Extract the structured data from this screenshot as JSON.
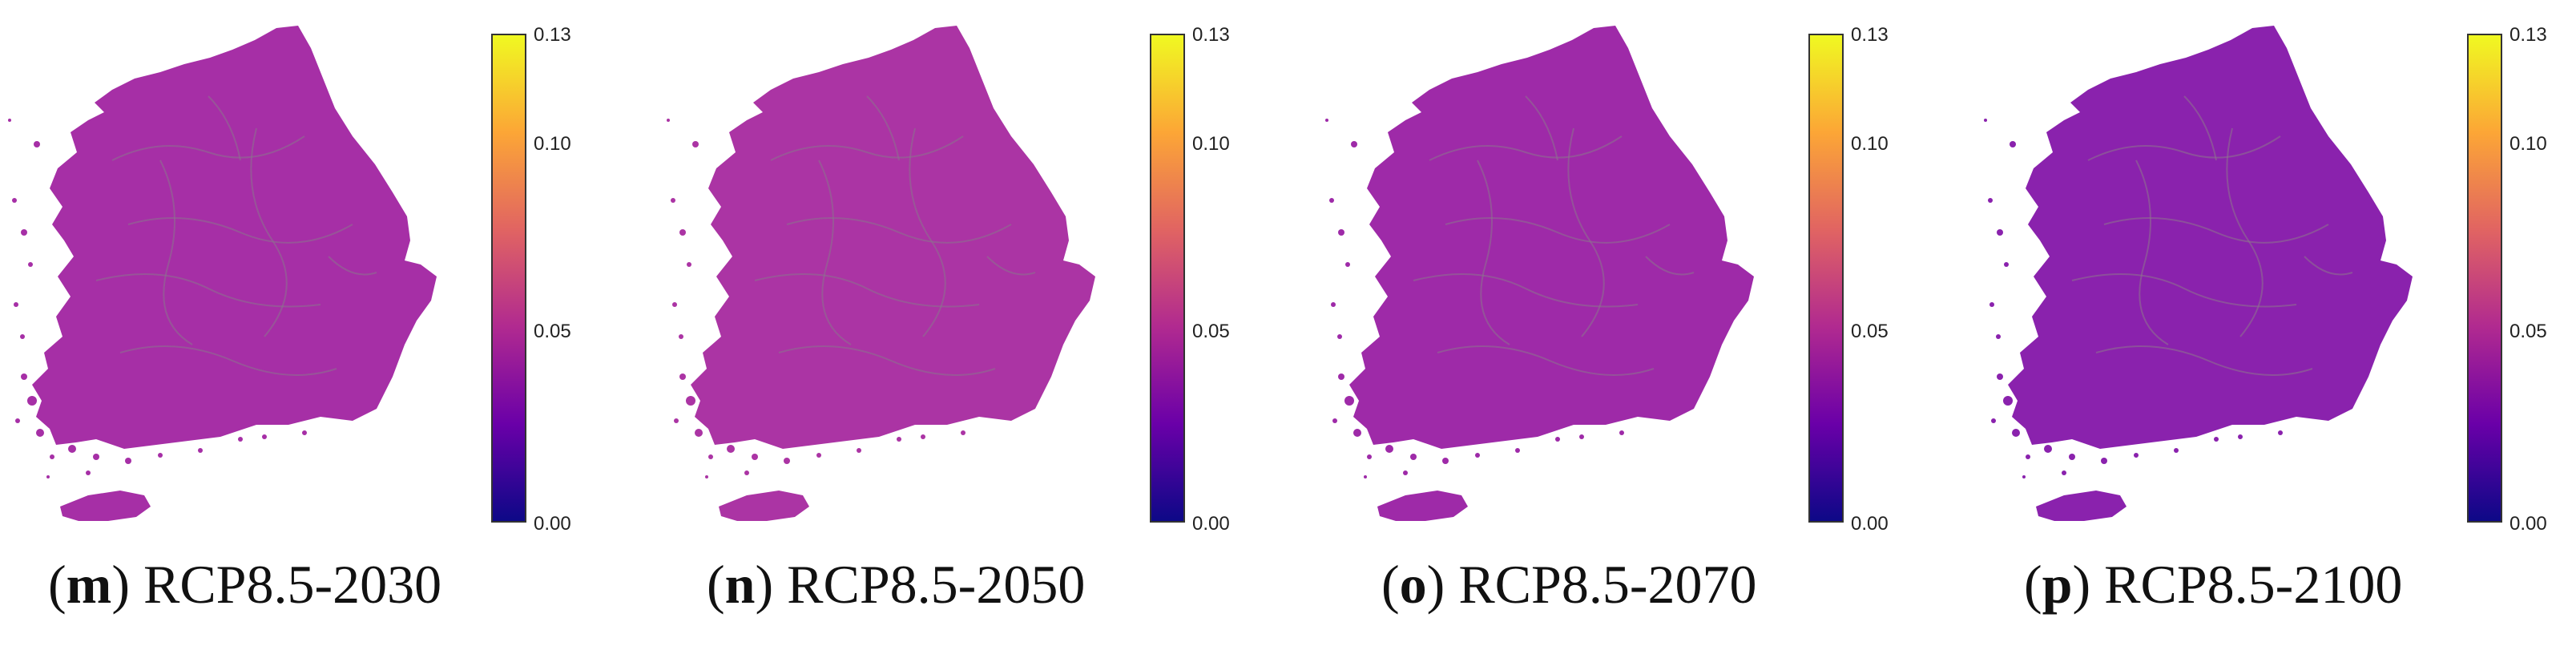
{
  "panels": [
    {
      "letter": "m",
      "label": "RCP8.5-2030",
      "mean_index": 0.045
    },
    {
      "letter": "n",
      "label": "RCP8.5-2050",
      "mean_index": 0.047
    },
    {
      "letter": "o",
      "label": "RCP8.5-2070",
      "mean_index": 0.044
    },
    {
      "letter": "p",
      "label": "RCP8.5-2100",
      "mean_index": 0.038
    }
  ],
  "colorbar": {
    "min": 0.0,
    "max": 0.13,
    "ticks": [
      "0.00",
      "0.05",
      "0.10",
      "0.13"
    ],
    "colormap": "plasma",
    "colors": [
      "#0d0887",
      "#6a00a8",
      "#b12a90",
      "#e16462",
      "#fca636",
      "#f0f921"
    ]
  },
  "map_colors": {
    "2030": "#a62fa6",
    "2050": "#ab34a4",
    "2070": "#9e2aa8",
    "2100": "#8a22ad",
    "boundary": "#8d6f8f"
  }
}
